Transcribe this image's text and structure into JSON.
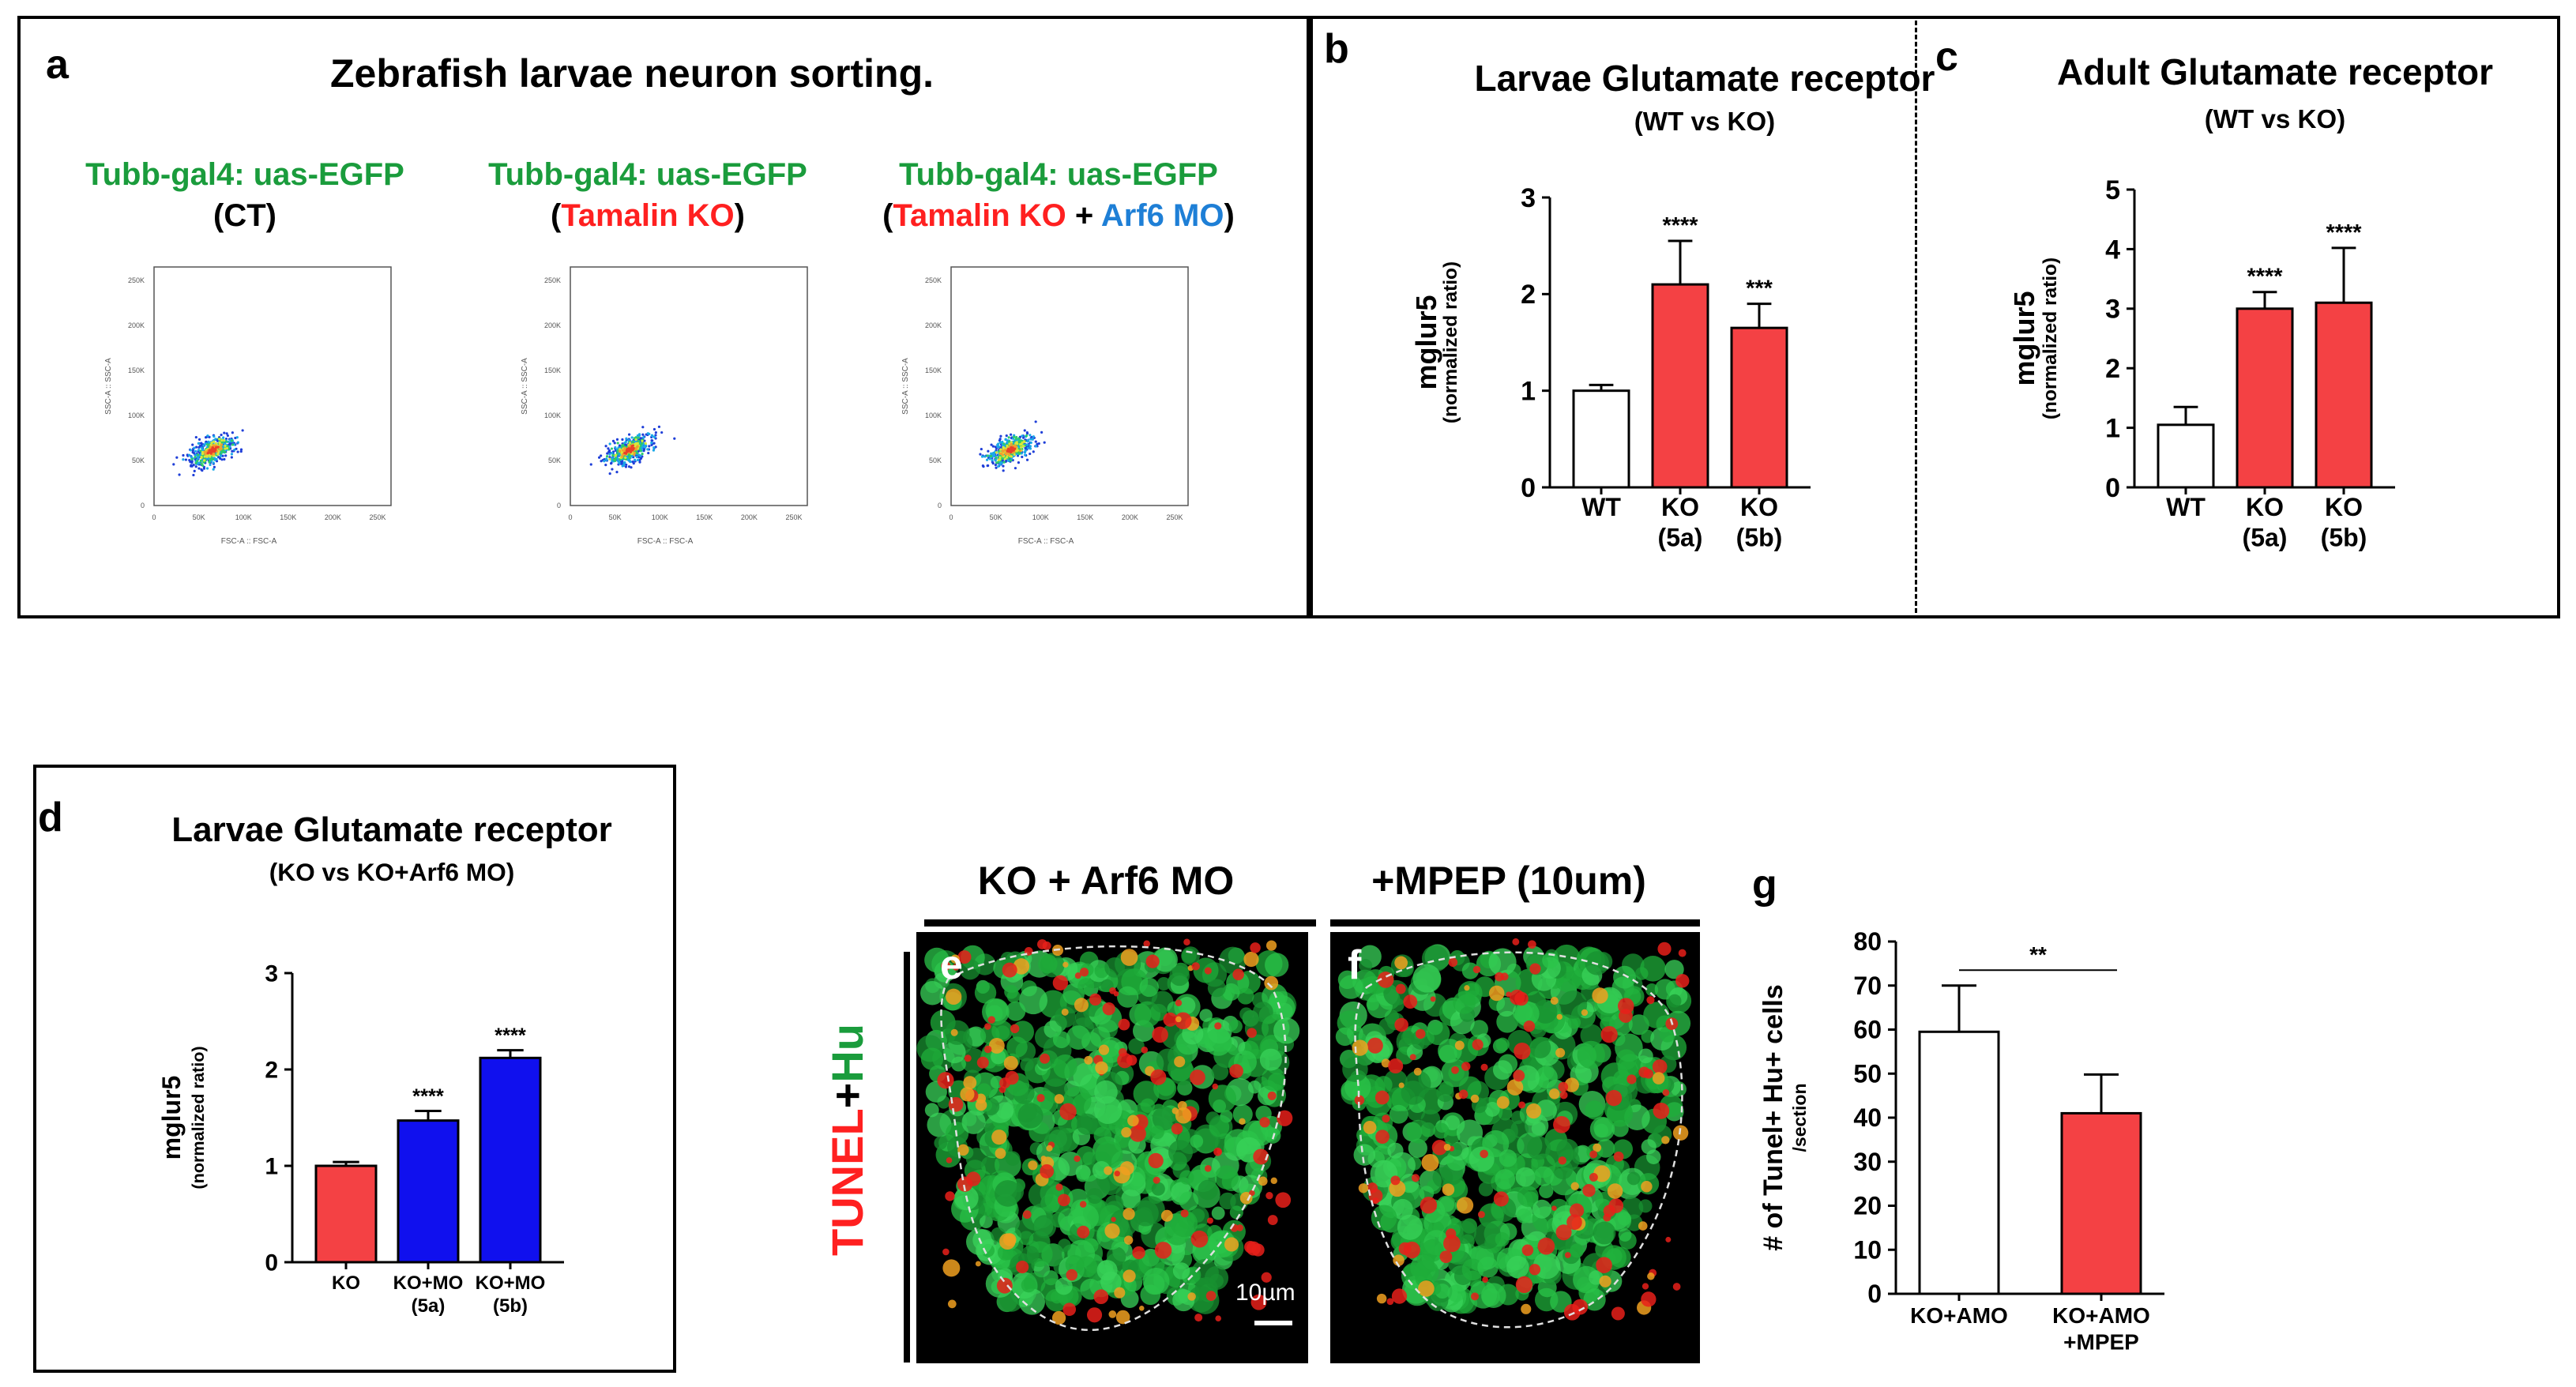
{
  "panel_a": {
    "label": "a",
    "title": "Zebrafish  larvae  neuron  sorting.",
    "columns": [
      {
        "line1": "Tubb-gal4: uas-EGFP",
        "open": "(",
        "cond": "CT",
        "plus": "",
        "cond2": "",
        "close": ")"
      },
      {
        "line1": "Tubb-gal4: uas-EGFP",
        "open": "(",
        "cond": "Tamalin KO",
        "plus": "",
        "cond2": "",
        "close": ")"
      },
      {
        "line1": "Tubb-gal4: uas-EGFP",
        "open": "(",
        "cond": "Tamalin KO",
        "plus": " + ",
        "cond2": "Arf6 MO",
        "close": ")"
      }
    ],
    "axis_labels": {
      "y": "SSC-A :: SSC-A",
      "x": "FSC-A :: FSC-A"
    },
    "ticks": [
      "0",
      "50K",
      "100K",
      "150K",
      "200K",
      "250K"
    ]
  },
  "panel_b": {
    "label": "b"
  },
  "panel_c": {
    "label": "c"
  },
  "panel_d": {
    "label": "d"
  },
  "panel_e": {
    "label": "e",
    "header": "KO + Arf6 MO",
    "scale": "10µm"
  },
  "panel_f": {
    "label": "f",
    "header": "+MPEP (10um)"
  },
  "panel_g": {
    "label": "g"
  },
  "stain": {
    "tunel": "TUNEL",
    "plus": "+",
    "hu": "Hu"
  },
  "chart_data": [
    {
      "id": "b",
      "type": "bar",
      "title": "Larvae Glutamate receptor",
      "subtitle": "(WT vs KO)",
      "ylabel": "mglur5",
      "ylabel2": "(normalized ratio)",
      "ylim": [
        0,
        3
      ],
      "yticks": [
        "0",
        "1",
        "2",
        "3"
      ],
      "categories": [
        [
          "WT"
        ],
        [
          "KO",
          "(5a)"
        ],
        [
          "KO",
          "(5b)"
        ]
      ],
      "values": [
        1.0,
        2.1,
        1.65
      ],
      "errors": [
        0.06,
        0.45,
        0.25
      ],
      "colors": [
        "#ffffff",
        "#f44144",
        "#f44144"
      ],
      "significance": [
        "",
        "****",
        "***"
      ]
    },
    {
      "id": "c",
      "type": "bar",
      "title": "Adult Glutamate receptor",
      "subtitle": "(WT vs KO)",
      "ylabel": "mglur5",
      "ylabel2": "(normalized ratio)",
      "ylim": [
        0,
        5
      ],
      "yticks": [
        "0",
        "1",
        "2",
        "3",
        "4",
        "5"
      ],
      "categories": [
        [
          "WT"
        ],
        [
          "KO",
          "(5a)"
        ],
        [
          "KO",
          "(5b)"
        ]
      ],
      "values": [
        1.05,
        3.0,
        3.1
      ],
      "errors": [
        0.3,
        0.28,
        0.92
      ],
      "colors": [
        "#ffffff",
        "#f44144",
        "#f44144"
      ],
      "significance": [
        "",
        "****",
        "****"
      ]
    },
    {
      "id": "d",
      "type": "bar",
      "title": "Larvae Glutamate receptor",
      "subtitle": "(KO vs  KO+Arf6 MO)",
      "ylabel": "mglur5",
      "ylabel2": "(normalized ratio)",
      "ylim": [
        0,
        3
      ],
      "yticks": [
        "0",
        "1",
        "2",
        "3"
      ],
      "categories": [
        [
          "KO"
        ],
        [
          "KO+MO",
          "(5a)"
        ],
        [
          "KO+MO",
          "(5b)"
        ]
      ],
      "values": [
        1.0,
        1.47,
        2.12
      ],
      "errors": [
        0.04,
        0.1,
        0.08
      ],
      "colors": [
        "#f44144",
        "#1010ee",
        "#1010ee"
      ],
      "significance": [
        "",
        "****",
        "****"
      ]
    },
    {
      "id": "g",
      "type": "bar",
      "title": "",
      "subtitle": "",
      "ylabel": "# of Tunel+ Hu+ cells",
      "ylabel2": "/section",
      "ylim": [
        0,
        80
      ],
      "yticks": [
        "0",
        "10",
        "20",
        "30",
        "40",
        "50",
        "60",
        "70",
        "80"
      ],
      "categories": [
        [
          "KO+AMO"
        ],
        [
          "KO+AMO",
          "+MPEP"
        ]
      ],
      "values": [
        59.5,
        41
      ],
      "errors": [
        10.5,
        8.8
      ],
      "colors": [
        "#ffffff",
        "#f44144"
      ],
      "significance": [],
      "bracket": "**"
    }
  ]
}
